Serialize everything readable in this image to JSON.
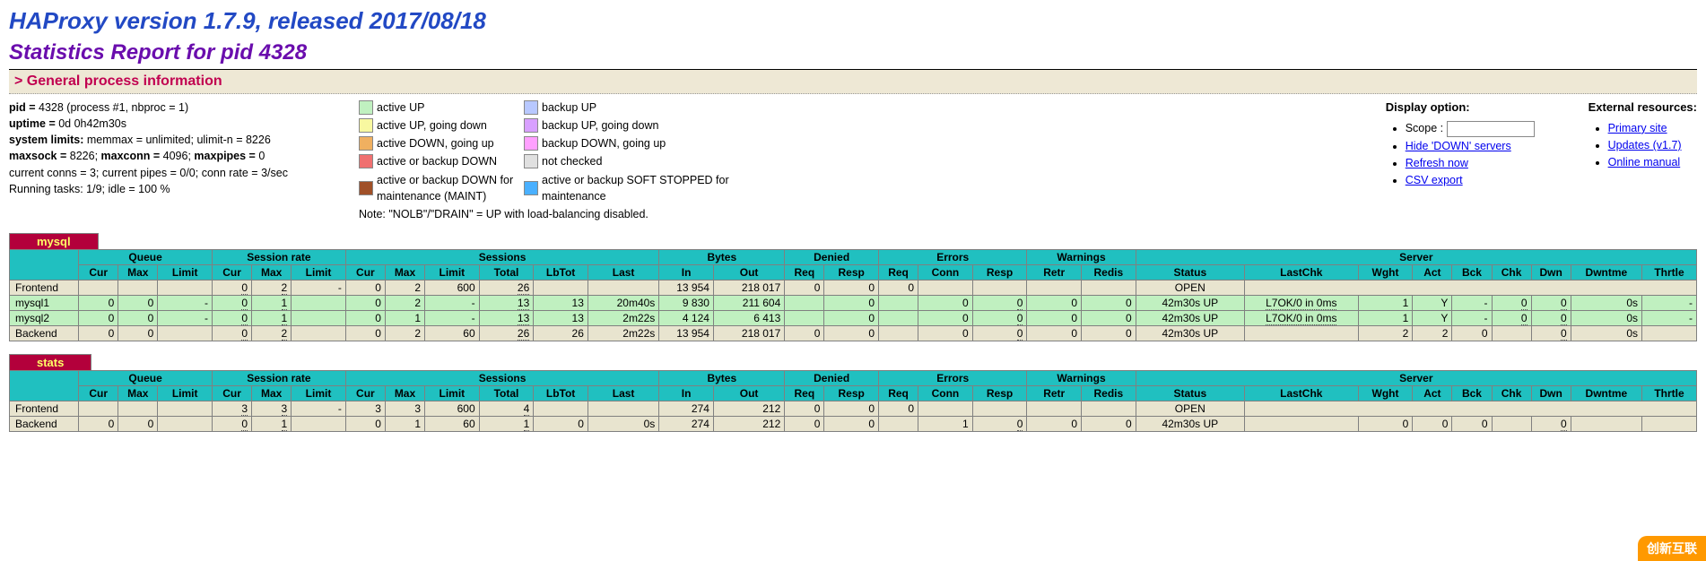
{
  "header": {
    "title": "HAProxy version 1.7.9, released 2017/08/18",
    "subtitle": "Statistics Report for pid 4328",
    "section": "> General process information"
  },
  "process": {
    "line1_pre": "pid = ",
    "line1_val": "4328 (process #1, nbproc = 1)",
    "line2_pre": "uptime = ",
    "line2_val": "0d 0h42m30s",
    "line3_pre": "system limits:",
    "line3_val": " memmax = unlimited; ulimit-n = 8226",
    "line4_a": "maxsock = ",
    "line4_av": "8226; ",
    "line4_b": "maxconn = ",
    "line4_bv": "4096; ",
    "line4_c": "maxpipes = ",
    "line4_cv": "0",
    "line5": "current conns = 3; current pipes = 0/0; conn rate = 3/sec",
    "line6": "Running tasks: 1/9; idle = 100 %"
  },
  "legend": {
    "items": [
      {
        "color": "#c0f0c0",
        "label": "active UP"
      },
      {
        "color": "#b8c8ff",
        "label": "backup UP"
      },
      {
        "color": "#f8f8a0",
        "label": "active UP, going down"
      },
      {
        "color": "#d8a0ff",
        "label": "backup UP, going down"
      },
      {
        "color": "#f0b060",
        "label": "active DOWN, going up"
      },
      {
        "color": "#ffa0ff",
        "label": "backup DOWN, going up"
      },
      {
        "color": "#f07070",
        "label": "active or backup DOWN"
      },
      {
        "color": "#e0e0e0",
        "label": "not checked"
      },
      {
        "color": "#a05028",
        "label": "active or backup DOWN for maintenance (MAINT)"
      },
      {
        "color": "#4ab0ff",
        "label": "active or backup SOFT STOPPED for maintenance"
      }
    ],
    "note": "Note: \"NOLB\"/\"DRAIN\" = UP with load-balancing disabled."
  },
  "display_option": {
    "title": "Display option:",
    "scope_label": "Scope :",
    "scope_value": "",
    "hide_down": "Hide 'DOWN' servers",
    "refresh": "Refresh now",
    "csv": "CSV export"
  },
  "external": {
    "title": "External resources:",
    "primary": "Primary site",
    "updates": "Updates (v1.7)",
    "manual": "Online manual"
  },
  "groups": {
    "queue": "Queue",
    "session_rate": "Session rate",
    "sessions": "Sessions",
    "bytes": "Bytes",
    "denied": "Denied",
    "errors": "Errors",
    "warnings": "Warnings",
    "server": "Server"
  },
  "cols": {
    "cur": "Cur",
    "max": "Max",
    "limit": "Limit",
    "total": "Total",
    "lbtot": "LbTot",
    "last": "Last",
    "in": "In",
    "out": "Out",
    "req": "Req",
    "resp": "Resp",
    "conn": "Conn",
    "retr": "Retr",
    "redis": "Redis",
    "status": "Status",
    "lastchk": "LastChk",
    "wght": "Wght",
    "act": "Act",
    "bck": "Bck",
    "chk": "Chk",
    "dwn": "Dwn",
    "dwntme": "Dwntme",
    "thrtle": "Thrtle"
  },
  "mysql": {
    "name": "mysql",
    "frontend": {
      "label": "Frontend",
      "sr_cur": "0",
      "sr_max": "2",
      "sr_lim": "-",
      "s_cur": "0",
      "s_max": "2",
      "s_lim": "600",
      "s_tot": "26",
      "b_in": "13 954",
      "b_out": "218 017",
      "d_req": "0",
      "d_resp": "0",
      "e_req": "0",
      "status": "OPEN"
    },
    "servers": [
      {
        "label": "mysql1",
        "q_cur": "0",
        "q_max": "0",
        "q_lim": "-",
        "sr_cur": "0",
        "sr_max": "1",
        "s_cur": "0",
        "s_max": "2",
        "s_lim": "-",
        "s_tot": "13",
        "s_lb": "13",
        "s_last": "20m40s",
        "b_in": "9 830",
        "b_out": "211 604",
        "d_req": "",
        "d_resp": "0",
        "e_req": "",
        "e_conn": "0",
        "e_resp": "0",
        "w_retr": "0",
        "w_redis": "0",
        "status": "42m30s UP",
        "lastchk": "L7OK/0 in 0ms",
        "wght": "1",
        "act": "Y",
        "bck": "-",
        "chk": "0",
        "dwn": "0",
        "dwntme": "0s",
        "thrtle": "-"
      },
      {
        "label": "mysql2",
        "q_cur": "0",
        "q_max": "0",
        "q_lim": "-",
        "sr_cur": "0",
        "sr_max": "1",
        "s_cur": "0",
        "s_max": "1",
        "s_lim": "-",
        "s_tot": "13",
        "s_lb": "13",
        "s_last": "2m22s",
        "b_in": "4 124",
        "b_out": "6 413",
        "d_req": "",
        "d_resp": "0",
        "e_req": "",
        "e_conn": "0",
        "e_resp": "0",
        "w_retr": "0",
        "w_redis": "0",
        "status": "42m30s UP",
        "lastchk": "L7OK/0 in 0ms",
        "wght": "1",
        "act": "Y",
        "bck": "-",
        "chk": "0",
        "dwn": "0",
        "dwntme": "0s",
        "thrtle": "-"
      }
    ],
    "backend": {
      "label": "Backend",
      "q_cur": "0",
      "q_max": "0",
      "sr_cur": "0",
      "sr_max": "2",
      "s_cur": "0",
      "s_max": "2",
      "s_lim": "60",
      "s_tot": "26",
      "s_lb": "26",
      "s_last": "2m22s",
      "b_in": "13 954",
      "b_out": "218 017",
      "d_req": "0",
      "d_resp": "0",
      "e_req": "",
      "e_conn": "0",
      "e_resp": "0",
      "w_retr": "0",
      "w_redis": "0",
      "status": "42m30s UP",
      "wght": "2",
      "act": "2",
      "bck": "0",
      "chk": "",
      "dwn": "0",
      "dwntme": "0s",
      "thrtle": ""
    }
  },
  "stats": {
    "name": "stats",
    "frontend": {
      "label": "Frontend",
      "sr_cur": "3",
      "sr_max": "3",
      "sr_lim": "-",
      "s_cur": "3",
      "s_max": "3",
      "s_lim": "600",
      "s_tot": "4",
      "b_in": "274",
      "b_out": "212",
      "d_req": "0",
      "d_resp": "0",
      "e_req": "0",
      "status": "OPEN"
    },
    "backend": {
      "label": "Backend",
      "q_cur": "0",
      "q_max": "0",
      "sr_cur": "0",
      "sr_max": "1",
      "s_cur": "0",
      "s_max": "1",
      "s_lim": "60",
      "s_tot": "1",
      "s_lb": "0",
      "s_last": "0s",
      "b_in": "274",
      "b_out": "212",
      "d_req": "0",
      "d_resp": "0",
      "e_req": "",
      "e_conn": "1",
      "e_resp": "0",
      "w_retr": "0",
      "w_redis": "0",
      "status": "42m30s UP",
      "wght": "0",
      "act": "0",
      "bck": "0",
      "chk": "",
      "dwn": "0",
      "dwntme": "",
      "thrtle": ""
    }
  },
  "corner": "创新互联"
}
